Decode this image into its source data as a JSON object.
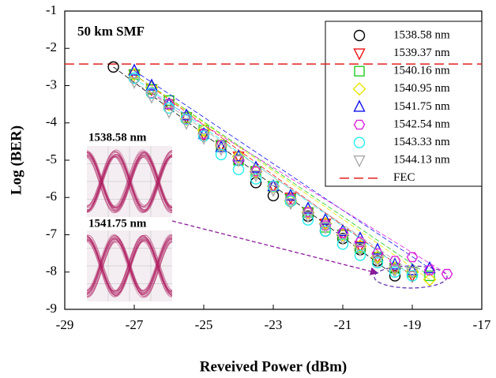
{
  "chart_data": {
    "type": "scatter",
    "xlabel": "Reveived Power (dBm)",
    "ylabel": "Log (BER)",
    "xlim": [
      -29,
      -17
    ],
    "xticks": [
      -29,
      -27,
      -25,
      -23,
      -21,
      -19,
      -17
    ],
    "ylim": [
      -9,
      -1
    ],
    "yticks": [
      -9,
      -8,
      -7,
      -6,
      -5,
      -4,
      -3,
      -2,
      -1
    ],
    "annotations": [
      "50 km SMF",
      "1538.58 nm",
      "1541.75 nm"
    ],
    "legend_position": "upper right",
    "fec": {
      "name": "FEC",
      "value": -2.42,
      "color": "#e02020"
    },
    "series": [
      {
        "name": "1538.58 nm",
        "color": "#000000",
        "marker": "circle",
        "x": [
          -27.6,
          -27,
          -26.5,
          -26,
          -25.5,
          -25,
          -24.5,
          -24,
          -23.5,
          -23,
          -22.5,
          -22,
          -21.5,
          -21,
          -20.5,
          -20,
          -19.5
        ],
        "values": [
          -2.5,
          -2.8,
          -3.2,
          -3.5,
          -3.9,
          -4.3,
          -4.6,
          -5.0,
          -5.6,
          -5.95,
          -6.1,
          -6.5,
          -6.9,
          -7.1,
          -7.4,
          -7.7,
          -8.1
        ]
      },
      {
        "name": "1539.37 nm",
        "color": "#ee1111",
        "marker": "triangle-down",
        "x": [
          -27,
          -26.5,
          -26,
          -25.5,
          -25,
          -24.5,
          -24,
          -23.5,
          -23,
          -22.5,
          -22,
          -21.5,
          -21,
          -20.5,
          -20,
          -19.5,
          -19
        ],
        "values": [
          -2.7,
          -3.1,
          -3.5,
          -3.85,
          -4.3,
          -4.6,
          -4.9,
          -5.3,
          -5.7,
          -6.0,
          -6.4,
          -6.7,
          -7.0,
          -7.3,
          -7.6,
          -7.9,
          -8.1
        ]
      },
      {
        "name": "1540.16 nm",
        "color": "#22cc22",
        "marker": "square",
        "x": [
          -27,
          -26.5,
          -26,
          -25.5,
          -25,
          -24.5,
          -24,
          -23.5,
          -23,
          -22.5,
          -22,
          -21.5,
          -21,
          -20.5,
          -20,
          -19.5,
          -19,
          -18.5
        ],
        "values": [
          -2.7,
          -3.1,
          -3.4,
          -3.85,
          -4.2,
          -4.6,
          -5.0,
          -5.3,
          -5.7,
          -6.05,
          -6.4,
          -6.8,
          -7.0,
          -7.35,
          -7.6,
          -7.9,
          -8.0,
          -8.1
        ]
      },
      {
        "name": "1540.95 nm",
        "color": "#e6e600",
        "marker": "diamond",
        "x": [
          -27,
          -26.5,
          -26,
          -25.5,
          -25,
          -24.5,
          -24,
          -23.5,
          -23,
          -22.5,
          -22,
          -21.5,
          -21,
          -20.5,
          -20,
          -19.5,
          -19,
          -18.5
        ],
        "values": [
          -2.7,
          -3.05,
          -3.5,
          -3.9,
          -4.2,
          -4.6,
          -4.9,
          -5.3,
          -5.7,
          -6.1,
          -6.4,
          -6.7,
          -7.0,
          -7.3,
          -7.6,
          -7.9,
          -8.0,
          -8.2
        ]
      },
      {
        "name": "1541.75 nm",
        "color": "#1111ee",
        "marker": "triangle-up",
        "x": [
          -27,
          -26.5,
          -26,
          -25.5,
          -25,
          -24.5,
          -24,
          -23.5,
          -23,
          -22.5,
          -22,
          -21.5,
          -21,
          -20.5,
          -20,
          -19.5,
          -19,
          -18.5
        ],
        "values": [
          -2.6,
          -3.0,
          -3.5,
          -3.8,
          -4.3,
          -4.65,
          -4.9,
          -5.2,
          -5.7,
          -5.95,
          -6.3,
          -6.6,
          -6.9,
          -7.1,
          -7.4,
          -7.8,
          -7.95,
          -7.9
        ]
      },
      {
        "name": "1542.54 nm",
        "color": "#dd22dd",
        "marker": "hexagon",
        "x": [
          -26.5,
          -26,
          -25.5,
          -25,
          -24.5,
          -24,
          -23.5,
          -23,
          -22.5,
          -22,
          -21.5,
          -21,
          -20.5,
          -20,
          -19.5,
          -19,
          -18.5,
          -18
        ],
        "values": [
          -3.2,
          -3.5,
          -3.9,
          -4.3,
          -4.6,
          -5.0,
          -5.3,
          -5.7,
          -6.05,
          -6.4,
          -6.75,
          -6.95,
          -7.2,
          -7.5,
          -7.7,
          -7.6,
          -7.95,
          -8.05
        ]
      },
      {
        "name": "1543.33 nm",
        "color": "#22eeee",
        "marker": "circle",
        "x": [
          -27,
          -26.5,
          -26,
          -25.5,
          -25,
          -24.5,
          -24,
          -23.5,
          -23,
          -22.5,
          -22,
          -21.5,
          -21,
          -20.5,
          -20,
          -19.5,
          -19
        ],
        "values": [
          -2.8,
          -3.2,
          -3.6,
          -3.9,
          -4.35,
          -4.85,
          -5.25,
          -5.5,
          -5.7,
          -6.1,
          -6.6,
          -6.9,
          -7.25,
          -7.55,
          -7.75,
          -8.0,
          -8.1
        ]
      },
      {
        "name": "1544.13 nm",
        "color": "#aaaaaa",
        "marker": "triangle-down",
        "x": [
          -27,
          -26.5,
          -26,
          -25.5,
          -25,
          -24.5,
          -24,
          -23.5,
          -23,
          -22.5,
          -22,
          -21.5,
          -21,
          -20.5,
          -20,
          -19.5,
          -19
        ],
        "values": [
          -2.9,
          -3.3,
          -3.7,
          -4.0,
          -4.4,
          -4.7,
          -5.0,
          -5.4,
          -5.8,
          -6.15,
          -6.5,
          -6.8,
          -7.1,
          -7.4,
          -7.7,
          -7.95,
          -8.0
        ]
      }
    ]
  }
}
